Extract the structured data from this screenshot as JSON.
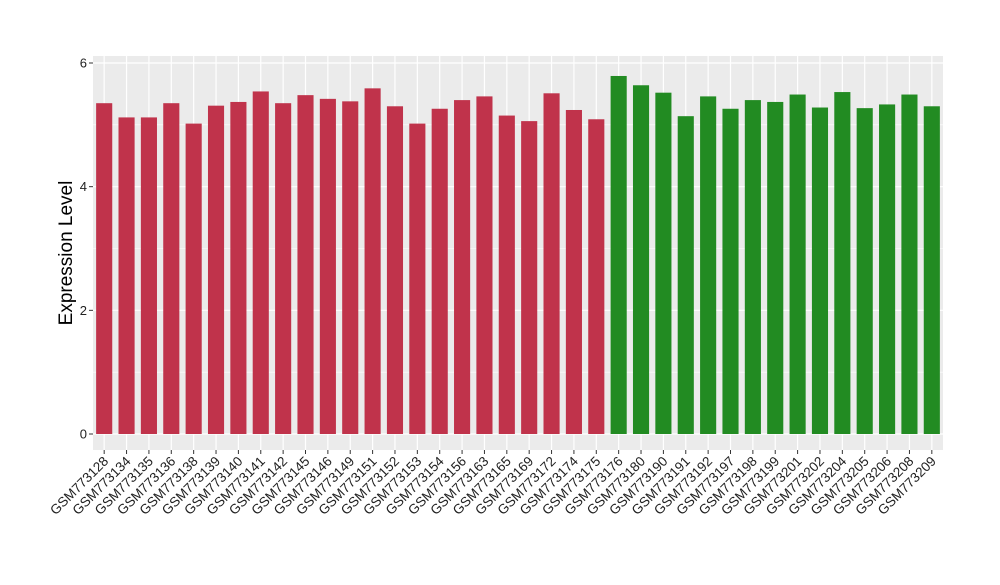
{
  "chart_data": {
    "type": "bar",
    "title": "",
    "xlabel": "",
    "ylabel": "Expression Level",
    "ylim": [
      0,
      6.3
    ],
    "yticks": [
      0,
      2,
      4,
      6
    ],
    "grid": true,
    "legend": "none",
    "categories": [
      "GSM773128",
      "GSM773134",
      "GSM773135",
      "GSM773136",
      "GSM773138",
      "GSM773139",
      "GSM773140",
      "GSM773141",
      "GSM773142",
      "GSM773145",
      "GSM773146",
      "GSM773149",
      "GSM773151",
      "GSM773152",
      "GSM773153",
      "GSM773154",
      "GSM773156",
      "GSM773163",
      "GSM773165",
      "GSM773169",
      "GSM773172",
      "GSM773174",
      "GSM773175",
      "GSM773176",
      "GSM773180",
      "GSM773190",
      "GSM773191",
      "GSM773192",
      "GSM773197",
      "GSM773198",
      "GSM773199",
      "GSM773201",
      "GSM773202",
      "GSM773204",
      "GSM773205",
      "GSM773206",
      "GSM773208",
      "GSM773209"
    ],
    "values": [
      5.35,
      5.12,
      5.12,
      5.35,
      5.02,
      5.31,
      5.37,
      5.54,
      5.35,
      5.48,
      5.42,
      5.38,
      5.59,
      5.3,
      5.02,
      5.26,
      5.4,
      5.46,
      5.15,
      5.06,
      5.51,
      5.24,
      5.09,
      5.79,
      5.64,
      5.52,
      5.14,
      5.46,
      5.26,
      5.4,
      5.37,
      5.49,
      5.28,
      5.53,
      5.27,
      5.33,
      5.49,
      5.3
    ],
    "bar_colors": [
      "#c0334b",
      "#c0334b",
      "#c0334b",
      "#c0334b",
      "#c0334b",
      "#c0334b",
      "#c0334b",
      "#c0334b",
      "#c0334b",
      "#c0334b",
      "#c0334b",
      "#c0334b",
      "#c0334b",
      "#c0334b",
      "#c0334b",
      "#c0334b",
      "#c0334b",
      "#c0334b",
      "#c0334b",
      "#c0334b",
      "#c0334b",
      "#c0334b",
      "#c0334b",
      "#228b22",
      "#228b22",
      "#228b22",
      "#228b22",
      "#228b22",
      "#228b22",
      "#228b22",
      "#228b22",
      "#228b22",
      "#228b22",
      "#228b22",
      "#228b22",
      "#228b22",
      "#228b22",
      "#228b22"
    ],
    "colors": {
      "panel": "#ebebeb",
      "grid": "#ffffff",
      "group_a": "#c0334b",
      "group_b": "#228b22"
    }
  }
}
